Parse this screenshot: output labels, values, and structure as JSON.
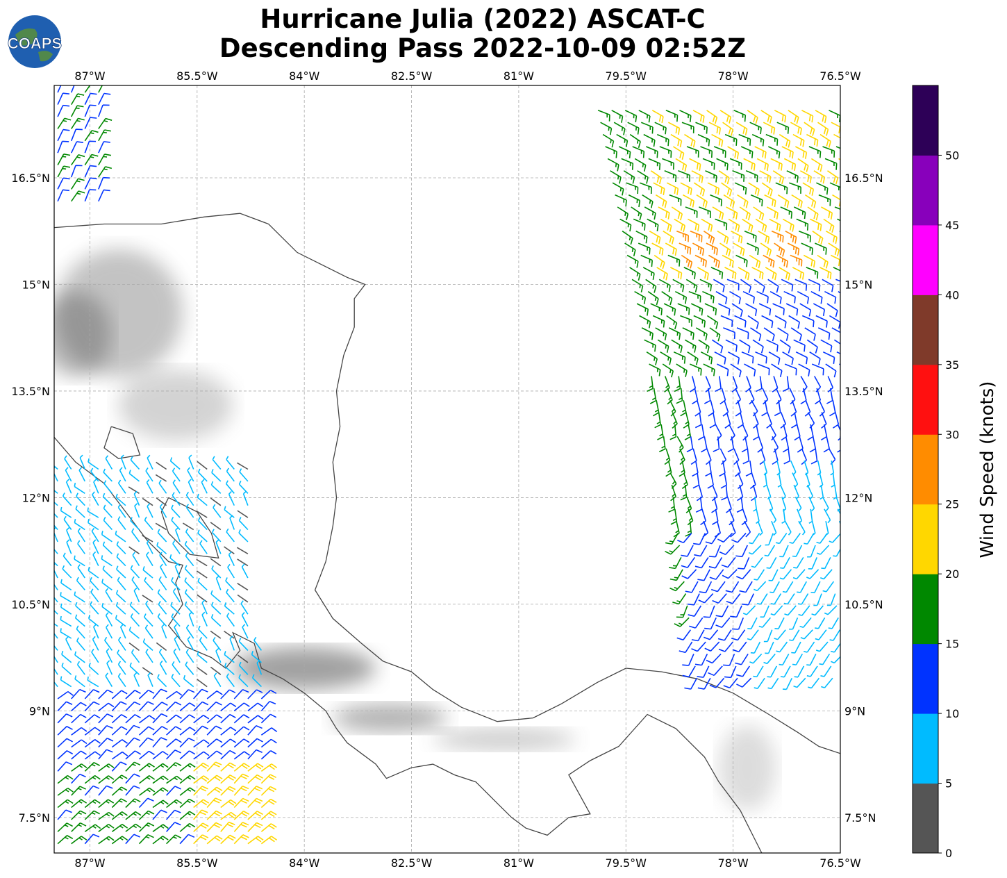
{
  "title": {
    "line1": "Hurricane Julia (2022) ASCAT-C",
    "line2": "Descending Pass 2022-10-09 02:52Z"
  },
  "logo": {
    "text": "COAPS",
    "colors": {
      "ocean": "#1f5fb0",
      "land": "#5a8f3a",
      "text": "#ffffff"
    }
  },
  "map": {
    "lon_range": [
      -87.5,
      -76.5
    ],
    "lat_range": [
      7.0,
      17.8
    ],
    "grid": true,
    "x_ticks": [
      {
        "value": -87.0,
        "label": "87°W"
      },
      {
        "value": -85.5,
        "label": "85.5°W"
      },
      {
        "value": -84.0,
        "label": "84°W"
      },
      {
        "value": -82.5,
        "label": "82.5°W"
      },
      {
        "value": -81.0,
        "label": "81°W"
      },
      {
        "value": -79.5,
        "label": "79.5°W"
      },
      {
        "value": -78.0,
        "label": "78°W"
      },
      {
        "value": -76.5,
        "label": "76.5°W"
      }
    ],
    "y_ticks": [
      {
        "value": 7.5,
        "label": "7.5°N"
      },
      {
        "value": 9.0,
        "label": "9°N"
      },
      {
        "value": 10.5,
        "label": "10.5°N"
      },
      {
        "value": 12.0,
        "label": "12°N"
      },
      {
        "value": 13.5,
        "label": "13.5°N"
      },
      {
        "value": 15.0,
        "label": "15°N"
      },
      {
        "value": 16.5,
        "label": "16.5°N"
      }
    ],
    "coastline_color": "#444444",
    "coastlines": [
      [
        [
          -87.5,
          15.8
        ],
        [
          -86.8,
          15.85
        ],
        [
          -86.0,
          15.85
        ],
        [
          -85.4,
          15.95
        ],
        [
          -84.9,
          16.0
        ],
        [
          -84.5,
          15.85
        ],
        [
          -84.1,
          15.45
        ],
        [
          -83.8,
          15.3
        ],
        [
          -83.4,
          15.1
        ],
        [
          -83.15,
          15.0
        ],
        [
          -83.3,
          14.8
        ],
        [
          -83.3,
          14.4
        ],
        [
          -83.45,
          14.0
        ],
        [
          -83.55,
          13.5
        ],
        [
          -83.5,
          13.0
        ],
        [
          -83.6,
          12.5
        ],
        [
          -83.55,
          12.0
        ],
        [
          -83.6,
          11.6
        ],
        [
          -83.7,
          11.1
        ],
        [
          -83.85,
          10.7
        ],
        [
          -83.6,
          10.3
        ],
        [
          -83.2,
          9.95
        ],
        [
          -82.9,
          9.7
        ],
        [
          -82.5,
          9.55
        ],
        [
          -82.2,
          9.3
        ],
        [
          -81.8,
          9.05
        ],
        [
          -81.3,
          8.85
        ],
        [
          -80.8,
          8.9
        ],
        [
          -80.4,
          9.1
        ],
        [
          -79.9,
          9.4
        ],
        [
          -79.5,
          9.6
        ],
        [
          -79.0,
          9.55
        ],
        [
          -78.5,
          9.45
        ],
        [
          -78.0,
          9.25
        ],
        [
          -77.5,
          8.95
        ],
        [
          -77.1,
          8.7
        ],
        [
          -76.8,
          8.5
        ],
        [
          -76.5,
          8.4
        ]
      ],
      [
        [
          -87.5,
          12.85
        ],
        [
          -87.2,
          12.5
        ],
        [
          -86.8,
          12.2
        ],
        [
          -86.5,
          11.8
        ],
        [
          -86.2,
          11.4
        ],
        [
          -85.9,
          11.1
        ],
        [
          -85.7,
          11.05
        ],
        [
          -85.8,
          10.8
        ],
        [
          -85.7,
          10.5
        ],
        [
          -85.9,
          10.2
        ],
        [
          -85.65,
          9.9
        ],
        [
          -85.3,
          9.75
        ],
        [
          -85.1,
          9.6
        ],
        [
          -84.9,
          9.85
        ],
        [
          -85.0,
          10.1
        ],
        [
          -84.7,
          9.95
        ],
        [
          -84.6,
          9.6
        ],
        [
          -84.3,
          9.45
        ],
        [
          -84.0,
          9.25
        ],
        [
          -83.7,
          9.0
        ],
        [
          -83.55,
          8.75
        ],
        [
          -83.4,
          8.55
        ],
        [
          -83.2,
          8.4
        ],
        [
          -83.0,
          8.25
        ],
        [
          -82.85,
          8.05
        ],
        [
          -82.5,
          8.2
        ],
        [
          -82.2,
          8.25
        ],
        [
          -81.9,
          8.1
        ],
        [
          -81.6,
          8.0
        ],
        [
          -81.3,
          7.7
        ],
        [
          -81.1,
          7.5
        ],
        [
          -80.9,
          7.35
        ],
        [
          -80.6,
          7.25
        ],
        [
          -80.3,
          7.5
        ],
        [
          -80.0,
          7.55
        ],
        [
          -80.3,
          8.1
        ],
        [
          -80.0,
          8.3
        ],
        [
          -79.6,
          8.5
        ],
        [
          -79.2,
          8.95
        ],
        [
          -78.8,
          8.75
        ],
        [
          -78.4,
          8.35
        ],
        [
          -78.2,
          8.0
        ],
        [
          -77.9,
          7.6
        ],
        [
          -77.7,
          7.2
        ],
        [
          -77.6,
          7.0
        ]
      ],
      [
        [
          -85.9,
          12.0
        ],
        [
          -85.5,
          11.8
        ],
        [
          -85.3,
          11.5
        ],
        [
          -85.2,
          11.15
        ],
        [
          -85.6,
          11.2
        ],
        [
          -85.9,
          11.5
        ],
        [
          -86.0,
          11.8
        ],
        [
          -85.9,
          12.0
        ]
      ],
      [
        [
          -86.7,
          13.0
        ],
        [
          -86.4,
          12.9
        ],
        [
          -86.3,
          12.6
        ],
        [
          -86.6,
          12.55
        ],
        [
          -86.8,
          12.7
        ],
        [
          -86.7,
          13.0
        ]
      ],
      [
        [
          -87.5,
          9.5
        ],
        [
          -87.5,
          9.5
        ]
      ]
    ],
    "terrain_patches": [
      {
        "lon": -86.6,
        "lat": 14.6,
        "rx": 0.9,
        "ry": 0.9,
        "opacity": 0.35
      },
      {
        "lon": -87.2,
        "lat": 14.3,
        "rx": 0.5,
        "ry": 0.6,
        "opacity": 0.4
      },
      {
        "lon": -85.8,
        "lat": 13.3,
        "rx": 0.8,
        "ry": 0.5,
        "opacity": 0.25
      },
      {
        "lon": -84.0,
        "lat": 9.6,
        "rx": 1.0,
        "ry": 0.3,
        "opacity": 0.55
      },
      {
        "lon": -82.8,
        "lat": 8.9,
        "rx": 0.8,
        "ry": 0.2,
        "opacity": 0.45
      },
      {
        "lon": -81.2,
        "lat": 8.6,
        "rx": 1.0,
        "ry": 0.15,
        "opacity": 0.3
      },
      {
        "lon": -77.8,
        "lat": 8.2,
        "rx": 0.4,
        "ry": 0.6,
        "opacity": 0.2
      }
    ]
  },
  "colorbar": {
    "label": "Wind Speed (knots)",
    "ticks": [
      "0",
      "5",
      "10",
      "15",
      "20",
      "25",
      "30",
      "35",
      "40",
      "45",
      "50"
    ],
    "colors": [
      "#555555",
      "#00bbff",
      "#0033ff",
      "#008800",
      "#ffd700",
      "#ff8c00",
      "#ff1010",
      "#7f3a2a",
      "#ff00ff",
      "#8800bb",
      "#2d0057"
    ],
    "range": [
      0,
      55
    ]
  },
  "wind_swaths": [
    {
      "name": "ne",
      "lon_range": [
        -79.9,
        -76.5
      ],
      "lat_range": [
        9.4,
        17.5
      ],
      "trace_west": [
        [
          17.5,
          -79.9
        ],
        [
          12.5,
          -78.9
        ],
        [
          9.4,
          -78.5
        ]
      ]
    },
    {
      "name": "sw",
      "lon_range": [
        -87.5,
        -84.4
      ],
      "lat_range": [
        7.1,
        12.5
      ]
    },
    {
      "name": "nw",
      "lon_range": [
        -87.5,
        -86.6
      ],
      "lat_range": [
        16.0,
        17.8
      ]
    }
  ],
  "chart_data": {
    "type": "map-wind-barbs",
    "title": "Hurricane Julia (2022) ASCAT-C Descending Pass 2022-10-09 02:52Z",
    "colorbar_label": "Wind Speed (knots)",
    "speed_bins_kt": [
      0,
      5,
      10,
      15,
      20,
      25,
      30,
      35,
      40,
      45,
      50,
      55
    ]
  }
}
